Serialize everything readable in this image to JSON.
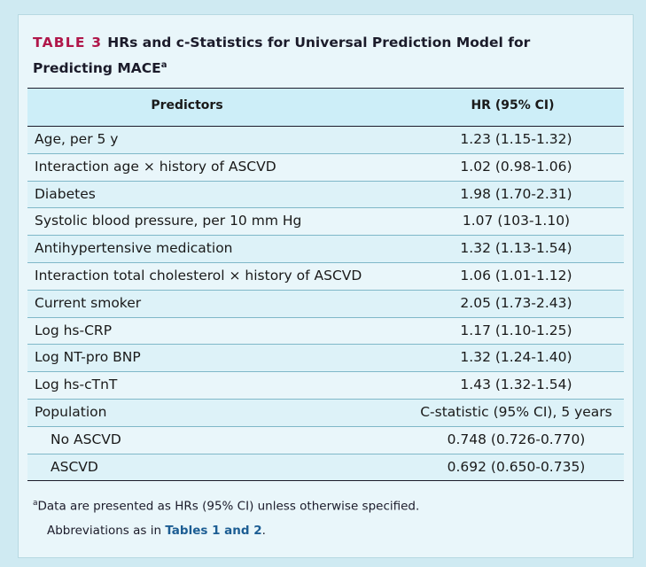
{
  "table": {
    "tag": "TABLE 3",
    "title": "HRs and c-Statistics for Universal Prediction Model for Predicting MACE",
    "title_sup": "a",
    "headers": [
      "Predictors",
      "HR (95% CI)"
    ],
    "rows": [
      {
        "label": "Age, per 5 y",
        "value": "1.23 (1.15-1.32)"
      },
      {
        "label": "Interaction age × history of ASCVD",
        "value": "1.02 (0.98-1.06)"
      },
      {
        "label": "Diabetes",
        "value": "1.98 (1.70-2.31)"
      },
      {
        "label": "Systolic blood pressure, per 10 mm Hg",
        "value": "1.07 (103-1.10)"
      },
      {
        "label": "Antihypertensive medication",
        "value": "1.32 (1.13-1.54)"
      },
      {
        "label": "Interaction total cholesterol × history of ASCVD",
        "value": "1.06 (1.01-1.12)"
      },
      {
        "label": "Current smoker",
        "value": "2.05 (1.73-2.43)"
      },
      {
        "label": "Log hs-CRP",
        "value": "1.17 (1.10-1.25)"
      },
      {
        "label": "Log NT-pro BNP",
        "value": "1.32 (1.24-1.40)"
      },
      {
        "label": "Log hs-cTnT",
        "value": "1.43 (1.32-1.54)"
      },
      {
        "label": "Population",
        "value": "C-statistic (95% CI), 5 years"
      },
      {
        "label": "No ASCVD",
        "value": "0.748 (0.726-0.770)"
      },
      {
        "label": "ASCVD",
        "value": "0.692 (0.650-0.735)"
      }
    ],
    "footnote_sup": "a",
    "footnote": "Data are presented as HRs (95% CI) unless otherwise specified.",
    "abbrev_prefix": "Abbreviations as in ",
    "abbrev_link": "Tables 1 and 2",
    "abbrev_suffix": "."
  },
  "colors": {
    "tag": "#b0174a",
    "link": "#1c5d93",
    "panel_bg": "#e9f6fa",
    "header_bg": "#cdeef8"
  }
}
